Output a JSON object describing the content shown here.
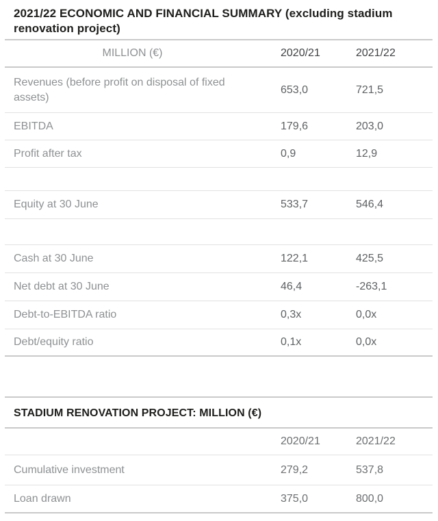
{
  "summary_table": {
    "title": "2021/22 ECONOMIC AND FINANCIAL SUMMARY (excluding stadium renovation project)",
    "columns": {
      "c1": "MILLION (€)",
      "c2": "2020/21",
      "c3": "2021/22"
    },
    "rows": [
      {
        "label": "Revenues (before profit on disposal of fixed assets)",
        "y2021": "653,0",
        "y2022": "721,5"
      },
      {
        "label": "EBITDA",
        "y2021": "179,6",
        "y2022": "203,0"
      },
      {
        "label": "Profit after tax",
        "y2021": "0,9",
        "y2022": "12,9"
      },
      {
        "label": "",
        "y2021": "",
        "y2022": ""
      },
      {
        "label": "Equity at 30 June",
        "y2021": "533,7",
        "y2022": "546,4"
      },
      {
        "label": "",
        "y2021": "",
        "y2022": ""
      },
      {
        "label": "Cash at 30 June",
        "y2021": "122,1",
        "y2022": "425,5"
      },
      {
        "label": "Net debt at 30 June",
        "y2021": "46,4",
        "y2022": "-263,1"
      },
      {
        "label": "Debt-to-EBITDA ratio",
        "y2021": "0,3x",
        "y2022": "0,0x"
      },
      {
        "label": "Debt/equity ratio",
        "y2021": "0,1x",
        "y2022": "0,0x"
      }
    ]
  },
  "stadium_table": {
    "title": "STADIUM RENOVATION PROJECT: MILLION (€)",
    "columns": {
      "c2": "2020/21",
      "c3": "2021/22"
    },
    "rows": [
      {
        "label": "Cumulative investment",
        "y2021": "279,2",
        "y2022": "537,8"
      },
      {
        "label": "Loan drawn",
        "y2021": "375,0",
        "y2022": "800,0"
      }
    ]
  },
  "colors": {
    "title_text": "#1d1d1b",
    "row_label": "#8d9092",
    "value_text": "#5d6062",
    "value_text_secondary": "#6b6e70",
    "year_header_primary": "#3f4143",
    "year_header_secondary": "#797c7e",
    "rule_strong": "#c9c9c9",
    "rule_light": "#e1e1e1",
    "background": "#ffffff"
  }
}
